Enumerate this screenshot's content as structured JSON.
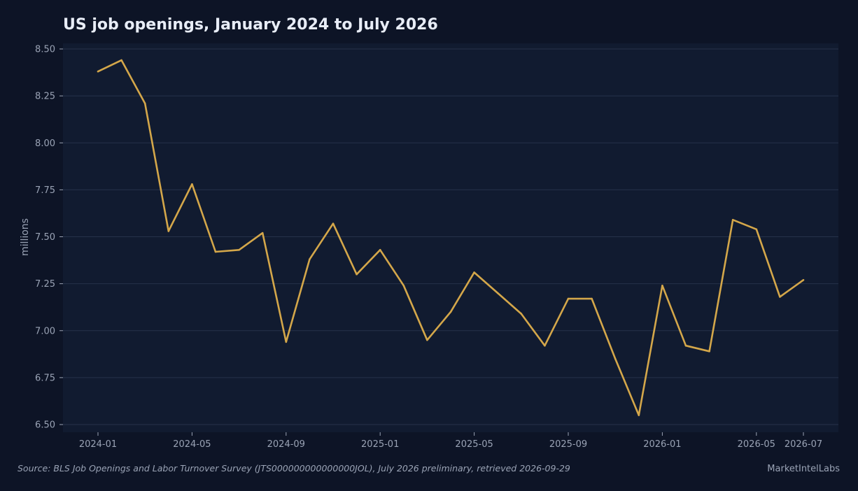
{
  "chart_data": {
    "type": "line",
    "title": "US job openings, January 2024 to July 2026",
    "ylabel": "millions",
    "xlabel": "",
    "ylim": [
      6.5,
      8.5
    ],
    "yticks": [
      "6.50",
      "6.75",
      "7.00",
      "7.25",
      "7.50",
      "7.75",
      "8.00",
      "8.25",
      "8.50"
    ],
    "xticks": [
      "2024-01",
      "2024-05",
      "2024-09",
      "2025-01",
      "2025-05",
      "2025-09",
      "2026-01",
      "2026-05",
      "2026-07"
    ],
    "grid": true,
    "x": [
      "2024-01",
      "2024-02",
      "2024-03",
      "2024-04",
      "2024-05",
      "2024-06",
      "2024-07",
      "2024-08",
      "2024-09",
      "2024-10",
      "2024-11",
      "2024-12",
      "2025-01",
      "2025-02",
      "2025-03",
      "2025-04",
      "2025-05",
      "2025-06",
      "2025-07",
      "2025-08",
      "2025-09",
      "2025-10",
      "2025-11",
      "2025-12",
      "2026-01",
      "2026-02",
      "2026-03",
      "2026-04",
      "2026-05",
      "2026-06",
      "2026-07"
    ],
    "series": [
      {
        "values": [
          8.38,
          8.44,
          8.21,
          7.53,
          7.78,
          7.42,
          7.43,
          7.52,
          6.94,
          7.38,
          7.57,
          7.3,
          7.43,
          7.24,
          6.95,
          7.1,
          7.31,
          7.2,
          7.09,
          6.92,
          7.17,
          7.17,
          6.85,
          6.55,
          7.24,
          6.92,
          6.89,
          7.59,
          7.54,
          7.18,
          7.27
        ],
        "color": "#d4a74a"
      }
    ]
  },
  "footer": {
    "source": "Source: BLS Job Openings and Labor Turnover Survey (JTS000000000000000JOL), July 2026 preliminary, retrieved 2026-09-29",
    "brand": "MarketIntelLabs"
  },
  "colors": {
    "background": "#0d1426",
    "plot_background": "#111b30",
    "grid": "#26324a",
    "line": "#d4a74a"
  }
}
